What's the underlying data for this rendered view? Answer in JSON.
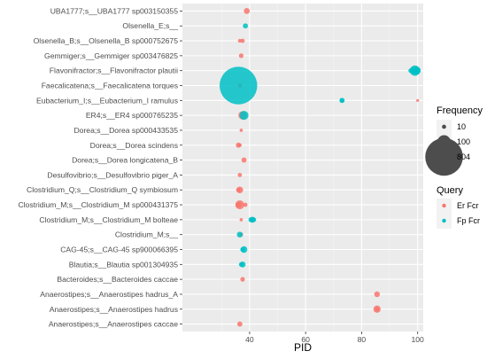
{
  "chart_data": {
    "type": "scatter",
    "xlabel": "PID",
    "xlim": [
      16,
      102
    ],
    "xticks": [
      40,
      60,
      80,
      100
    ],
    "categories": [
      "UBA1777;s__UBA1777 sp003150355",
      "Olsenella_E;s__",
      "Olsenella_B;s__Olsenella_B sp000752675",
      "Gemmiger;s__Gemmiger sp003476825",
      "Flavonifractor;s__Flavonifractor plautii",
      "Faecalicatena;s__Faecalicatena torques",
      "Eubacterium_I;s__Eubacterium_I ramulus",
      "ER4;s__ER4 sp000765235",
      "Dorea;s__Dorea sp000433535",
      "Dorea;s__Dorea scindens",
      "Dorea;s__Dorea longicatena_B",
      "Desulfovibrio;s__Desulfovibrio piger_A",
      "Clostridium_Q;s__Clostridium_Q symbiosum",
      "Clostridium_M;s__Clostridium_M sp000431375",
      "Clostridium_M;s__Clostridium_M bolteae",
      "Clostridium_M;s__",
      "CAG-45;s__CAG-45 sp900066395",
      "Blautia;s__Blautia sp001304935",
      "Bacteroides;s__Bacteroides caccae",
      "Anaerostipes;s__Anaerostipes hadrus_A",
      "Anaerostipes;s__Anaerostipes hadrus",
      "Anaerostipes;s__Anaerostipes caccae"
    ],
    "size_legend": {
      "title": "Frequency",
      "labels": [
        "10",
        "100",
        "804"
      ],
      "values": [
        10,
        100,
        804
      ]
    },
    "color_legend": {
      "title": "Query",
      "labels": [
        "Er Fcr",
        "Fp Fcr"
      ],
      "colors": [
        "#F8766D",
        "#00BFC4"
      ]
    },
    "series": [
      {
        "name": "Er Fcr",
        "color": "#F8766D",
        "points": [
          {
            "x": 39,
            "y": "UBA1777;s__UBA1777 sp003150355",
            "freq": 20
          },
          {
            "x": 37.5,
            "y": "Olsenella_B;s__Olsenella_B sp000752675",
            "freq": 10
          },
          {
            "x": 36.5,
            "y": "Olsenella_B;s__Olsenella_B sp000752675",
            "freq": 8
          },
          {
            "x": 37,
            "y": "Gemmiger;s__Gemmiger sp003476825",
            "freq": 12
          },
          {
            "x": 36.5,
            "y": "Faecalicatena;s__Faecalicatena torques",
            "freq": 10
          },
          {
            "x": 100,
            "y": "Eubacterium_I;s__Eubacterium_I ramulus",
            "freq": 4
          },
          {
            "x": 37.5,
            "y": "ER4;s__ER4 sp000765235",
            "freq": 40
          },
          {
            "x": 37,
            "y": "Dorea;s__Dorea sp000433535",
            "freq": 6
          },
          {
            "x": 36,
            "y": "Dorea;s__Dorea scindens",
            "freq": 15
          },
          {
            "x": 36.5,
            "y": "Dorea;s__Dorea scindens",
            "freq": 8
          },
          {
            "x": 38,
            "y": "Dorea;s__Dorea longicatena_B",
            "freq": 15
          },
          {
            "x": 36.5,
            "y": "Desulfovibrio;s__Desulfovibrio piger_A",
            "freq": 10
          },
          {
            "x": 36.5,
            "y": "Clostridium_Q;s__Clostridium_Q symbiosum",
            "freq": 25
          },
          {
            "x": 36,
            "y": "Clostridium_Q;s__Clostridium_Q symbiosum",
            "freq": 12
          },
          {
            "x": 36.5,
            "y": "Clostridium_M;s__Clostridium_M sp000431375",
            "freq": 45
          },
          {
            "x": 36,
            "y": "Clostridium_M;s__Clostridium_M sp000431375",
            "freq": 20
          },
          {
            "x": 38.5,
            "y": "Clostridium_M;s__Clostridium_M sp000431375",
            "freq": 10
          },
          {
            "x": 37,
            "y": "Clostridium_M;s__Clostridium_M bolteae",
            "freq": 6
          },
          {
            "x": 37,
            "y": "Clostridium_M;s__",
            "freq": 8
          },
          {
            "x": 37.5,
            "y": "Bacteroides;s__Bacteroides caccae",
            "freq": 12
          },
          {
            "x": 85.5,
            "y": "Anaerostipes;s__Anaerostipes hadrus_A",
            "freq": 18
          },
          {
            "x": 85.5,
            "y": "Anaerostipes;s__Anaerostipes hadrus",
            "freq": 30
          },
          {
            "x": 85.5,
            "y": "Anaerostipes;s__Anaerostipes hadrus",
            "freq": 10
          },
          {
            "x": 36.5,
            "y": "Anaerostipes;s__Anaerostipes caccae",
            "freq": 15
          }
        ]
      },
      {
        "name": "Fp Fcr",
        "color": "#00BFC4",
        "points": [
          {
            "x": 38.5,
            "y": "Olsenella_E;s__",
            "freq": 15
          },
          {
            "x": 99,
            "y": "Flavonifractor;s__Flavonifractor plautii",
            "freq": 60
          },
          {
            "x": 99.5,
            "y": "Flavonifractor;s__Flavonifractor plautii",
            "freq": 40
          },
          {
            "x": 98.5,
            "y": "Flavonifractor;s__Flavonifractor plautii",
            "freq": 25
          },
          {
            "x": 99.8,
            "y": "Flavonifractor;s__Flavonifractor plautii",
            "freq": 30
          },
          {
            "x": 97.5,
            "y": "Flavonifractor;s__Flavonifractor plautii",
            "freq": 12
          },
          {
            "x": 36,
            "y": "Faecalicatena;s__Faecalicatena torques",
            "freq": 804
          },
          {
            "x": 73,
            "y": "Eubacterium_I;s__Eubacterium_I ramulus",
            "freq": 15
          },
          {
            "x": 73,
            "y": "Eubacterium_I;s__Eubacterium_I ramulus",
            "freq": 12
          },
          {
            "x": 38,
            "y": "ER4;s__ER4 sp000765235",
            "freq": 45
          },
          {
            "x": 41,
            "y": "Clostridium_M;s__Clostridium_M bolteae",
            "freq": 20
          },
          {
            "x": 40.5,
            "y": "Clostridium_M;s__Clostridium_M bolteae",
            "freq": 15
          },
          {
            "x": 41.5,
            "y": "Clostridium_M;s__Clostridium_M bolteae",
            "freq": 12
          },
          {
            "x": 36.5,
            "y": "Clostridium_M;s__",
            "freq": 20
          },
          {
            "x": 38,
            "y": "CAG-45;s__CAG-45 sp900066395",
            "freq": 25
          },
          {
            "x": 37.5,
            "y": "CAG-45;s__CAG-45 sp900066395",
            "freq": 12
          },
          {
            "x": 37.5,
            "y": "Blautia;s__Blautia sp001304935",
            "freq": 20
          },
          {
            "x": 37,
            "y": "Blautia;s__Blautia sp001304935",
            "freq": 12
          }
        ]
      }
    ],
    "grid": true,
    "legend_position": "right"
  }
}
